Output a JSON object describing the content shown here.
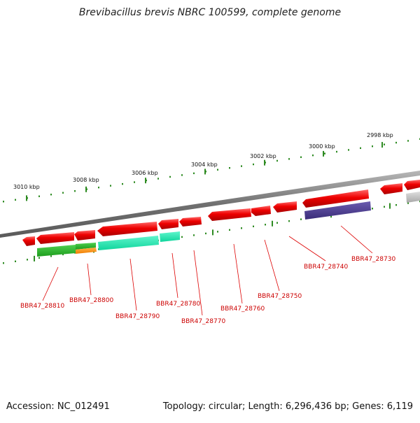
{
  "title": "Brevibacillus brevis NBRC 100599, complete genome",
  "footer": {
    "accession": "Accession: NC_012491",
    "summary": "Topology: circular; Length: 6,296,436 bp; Genes: 6,119"
  },
  "scale_labels": [
    "3010 kbp",
    "3008 kbp",
    "3006 kbp",
    "3004 kbp",
    "3002 kbp",
    "3000 kbp",
    "2998 kbp"
  ],
  "gene_labels": [
    "BBR47_28810",
    "BBR47_28800",
    "BBR47_28790",
    "BBR47_28780",
    "BBR47_28770",
    "BBR47_28760",
    "BBR47_28750",
    "BBR47_28740",
    "BBR47_28730"
  ],
  "colors": {
    "gene": "#e8000b",
    "label": "#cc0000",
    "scale_dots": "#2e8b22",
    "backbone": "#808080",
    "cog_green": "#2fbf2f",
    "cog_orange": "#ff9a1a",
    "cog_teal": "#1de9b0",
    "cog_purple": "#4b3c8c",
    "cog_grey": "#bdbdbd"
  }
}
